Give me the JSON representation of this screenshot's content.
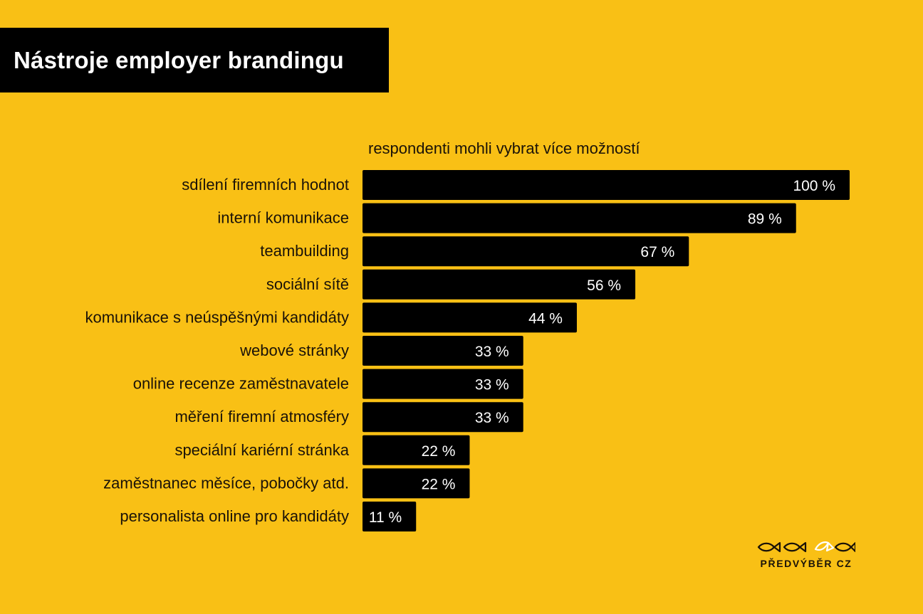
{
  "header": {
    "title": "Nástroje employer brandingu",
    "subtitle": "respondenti mohli vybrat více možností"
  },
  "colors": {
    "background": "#F9C015",
    "bar": "#000000",
    "bar_text": "#FFFFFF",
    "label_text": "#1A1208"
  },
  "chart_data": {
    "type": "bar",
    "orientation": "horizontal",
    "title": "Nástroje employer brandingu",
    "subtitle": "respondenti mohli vybrat více možností",
    "xlim": [
      0,
      100
    ],
    "grid": false,
    "categories": [
      "sdílení firemních hodnot",
      "interní komunikace",
      "teambuilding",
      "sociální sítě",
      "komunikace s neúspěšnými kandidáty",
      "webové stránky",
      "online recenze zaměstnavatele",
      "měření firemní atmosféry",
      "speciální kariérní stránka",
      "zaměstnanec měsíce, pobočky atd.",
      "personalista online pro kandidáty"
    ],
    "values": [
      100,
      89,
      67,
      56,
      44,
      33,
      33,
      33,
      22,
      22,
      11
    ],
    "value_labels": [
      "100 %",
      "89 %",
      "67 %",
      "56 %",
      "44 %",
      "33 %",
      "33 %",
      "33 %",
      "22 %",
      "22 %",
      "11 %"
    ]
  },
  "logo": {
    "text": "PŘEDVÝBĚR CZ",
    "icon": "fish-row-icon"
  }
}
